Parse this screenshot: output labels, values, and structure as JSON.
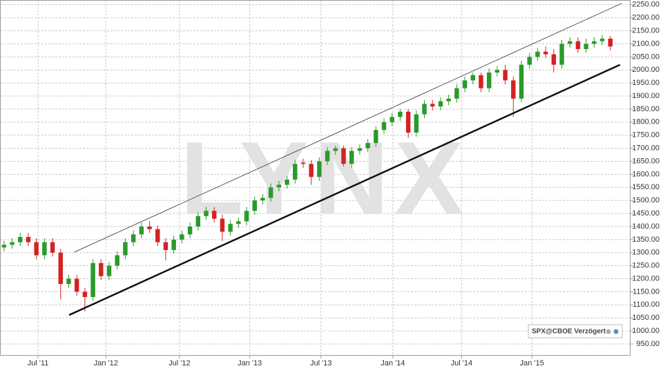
{
  "chart_data": {
    "type": "candlestick",
    "watermark": "LYNX",
    "source_label": "SPX@CBOE Verzögert",
    "up_color": "#2a9a2a",
    "down_color": "#d42222",
    "xlim": [
      -0.5,
      77.5
    ],
    "xticks": [
      {
        "value": 4.2,
        "label": "Jul '11"
      },
      {
        "value": 12.6,
        "label": "Jan '12"
      },
      {
        "value": 21.7,
        "label": "Jul '12"
      },
      {
        "value": 30.4,
        "label": "Jan '13"
      },
      {
        "value": 39.2,
        "label": "Jul '13"
      },
      {
        "value": 48.1,
        "label": "Jan '14"
      },
      {
        "value": 56.6,
        "label": "Jul '14"
      },
      {
        "value": 65.3,
        "label": "Jan '15"
      }
    ],
    "ylim": [
      905,
      2268
    ],
    "yticks": [
      {
        "value": 950,
        "label": "950.00"
      },
      {
        "value": 1000,
        "label": "1000.00"
      },
      {
        "value": 1050,
        "label": "1050.00"
      },
      {
        "value": 1100,
        "label": "1100.00"
      },
      {
        "value": 1150,
        "label": "1150.00"
      },
      {
        "value": 1200,
        "label": "1200.00"
      },
      {
        "value": 1250,
        "label": "1250.00"
      },
      {
        "value": 1300,
        "label": "1300.00"
      },
      {
        "value": 1350,
        "label": "1350.00"
      },
      {
        "value": 1400,
        "label": "1400.00"
      },
      {
        "value": 1450,
        "label": "1450.00"
      },
      {
        "value": 1500,
        "label": "1500.00"
      },
      {
        "value": 1550,
        "label": "1550.00"
      },
      {
        "value": 1600,
        "label": "1600.00"
      },
      {
        "value": 1650,
        "label": "1650.00"
      },
      {
        "value": 1700,
        "label": "1700.00"
      },
      {
        "value": 1750,
        "label": "1750.00"
      },
      {
        "value": 1800,
        "label": "1800.00"
      },
      {
        "value": 1850,
        "label": "1850.00"
      },
      {
        "value": 1900,
        "label": "1900.00"
      },
      {
        "value": 1950,
        "label": "1950.00"
      },
      {
        "value": 2000,
        "label": "2000.00"
      },
      {
        "value": 2050,
        "label": "2050.00"
      },
      {
        "value": 2100,
        "label": "2100.00"
      },
      {
        "value": 2150,
        "label": "2150.00"
      },
      {
        "value": 2200,
        "label": "2200.00"
      },
      {
        "value": 2250,
        "label": "2250.00"
      }
    ],
    "grid": true,
    "open": [
      1320,
      1330,
      1340,
      1360,
      1340,
      1290,
      1340,
      1300,
      1180,
      1200,
      1150,
      1130,
      1260,
      1210,
      1250,
      1290,
      1340,
      1370,
      1400,
      1390,
      1340,
      1310,
      1350,
      1370,
      1400,
      1440,
      1460,
      1430,
      1380,
      1410,
      1420,
      1460,
      1500,
      1510,
      1550,
      1560,
      1580,
      1645,
      1640,
      1590,
      1650,
      1690,
      1700,
      1640,
      1690,
      1700,
      1720,
      1770,
      1800,
      1820,
      1840,
      1760,
      1830,
      1870,
      1860,
      1880,
      1890,
      1930,
      1960,
      1980,
      1930,
      1990,
      2000,
      1960,
      1890,
      2020,
      2050,
      2070,
      2060,
      2020,
      2100,
      2110,
      2080,
      2100,
      2110,
      2120
    ],
    "high": [
      1345,
      1355,
      1375,
      1375,
      1355,
      1355,
      1355,
      1315,
      1215,
      1215,
      1165,
      1275,
      1275,
      1265,
      1305,
      1355,
      1385,
      1415,
      1420,
      1405,
      1355,
      1365,
      1385,
      1415,
      1455,
      1475,
      1475,
      1445,
      1425,
      1435,
      1475,
      1515,
      1525,
      1565,
      1575,
      1595,
      1655,
      1660,
      1655,
      1665,
      1705,
      1710,
      1710,
      1705,
      1715,
      1735,
      1785,
      1815,
      1835,
      1850,
      1850,
      1845,
      1885,
      1885,
      1895,
      1905,
      1945,
      1975,
      1990,
      1990,
      2005,
      2015,
      2020,
      1975,
      2035,
      2065,
      2085,
      2090,
      2080,
      2115,
      2125,
      2125,
      2120,
      2125,
      2135,
      2130
    ],
    "low": [
      1305,
      1315,
      1325,
      1325,
      1275,
      1275,
      1285,
      1120,
      1165,
      1135,
      1075,
      1115,
      1195,
      1195,
      1235,
      1275,
      1325,
      1355,
      1375,
      1325,
      1270,
      1295,
      1335,
      1355,
      1385,
      1425,
      1415,
      1345,
      1365,
      1395,
      1405,
      1445,
      1485,
      1495,
      1535,
      1545,
      1565,
      1625,
      1560,
      1575,
      1635,
      1675,
      1630,
      1625,
      1675,
      1685,
      1705,
      1755,
      1785,
      1805,
      1740,
      1745,
      1815,
      1845,
      1845,
      1865,
      1875,
      1915,
      1945,
      1915,
      1915,
      1975,
      1945,
      1820,
      1875,
      2005,
      2035,
      2045,
      1990,
      2005,
      2085,
      2065,
      2065,
      2085,
      2095,
      2075
    ],
    "close": [
      1330,
      1340,
      1360,
      1340,
      1290,
      1340,
      1300,
      1180,
      1200,
      1150,
      1130,
      1260,
      1210,
      1250,
      1290,
      1340,
      1370,
      1400,
      1390,
      1340,
      1310,
      1350,
      1370,
      1400,
      1440,
      1460,
      1430,
      1380,
      1410,
      1420,
      1460,
      1500,
      1510,
      1550,
      1560,
      1580,
      1640,
      1640,
      1590,
      1650,
      1690,
      1700,
      1640,
      1690,
      1700,
      1720,
      1770,
      1800,
      1820,
      1840,
      1760,
      1830,
      1870,
      1860,
      1880,
      1890,
      1930,
      1960,
      1980,
      1930,
      1990,
      2000,
      1960,
      1890,
      2020,
      2050,
      2070,
      2060,
      2020,
      2100,
      2110,
      2080,
      2100,
      2110,
      2120,
      2090
    ],
    "trendlines": [
      {
        "x": [
          8.7,
          76.4
        ],
        "y": [
          1302,
          2255
        ],
        "color": "#555555",
        "line_width": 1
      },
      {
        "x": [
          8.05,
          76.2
        ],
        "y": [
          1061,
          2020
        ],
        "color": "#111111",
        "line_width": 2.5
      }
    ]
  }
}
